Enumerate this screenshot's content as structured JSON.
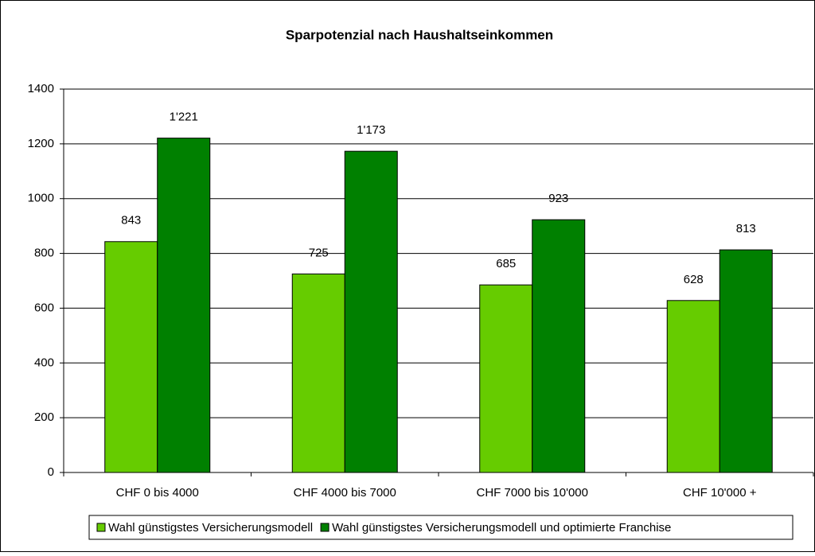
{
  "chart_data": {
    "type": "bar",
    "title": "Sparpotenzial nach Haushaltseinkommen",
    "categories": [
      "CHF 0 bis 4000",
      "CHF 4000 bis 7000",
      "CHF 7000 bis 10'000",
      "CHF 10'000 +"
    ],
    "series": [
      {
        "name": "Wahl günstigstes Versicherungsmodell",
        "color": "#66cc00",
        "values": [
          843,
          725,
          685,
          628
        ],
        "value_labels": [
          "843",
          "725",
          "685",
          "628"
        ]
      },
      {
        "name": "Wahl günstigstes Versicherungsmodell und optimierte Franchise",
        "color": "#008000",
        "values": [
          1221,
          1173,
          923,
          813
        ],
        "value_labels": [
          "1'221",
          "1'173",
          "923",
          "813"
        ]
      }
    ],
    "ylim": [
      0,
      1400
    ],
    "yticks": [
      0,
      200,
      400,
      600,
      800,
      1000,
      1200,
      1400
    ],
    "grid": true,
    "legend": "bottom"
  }
}
